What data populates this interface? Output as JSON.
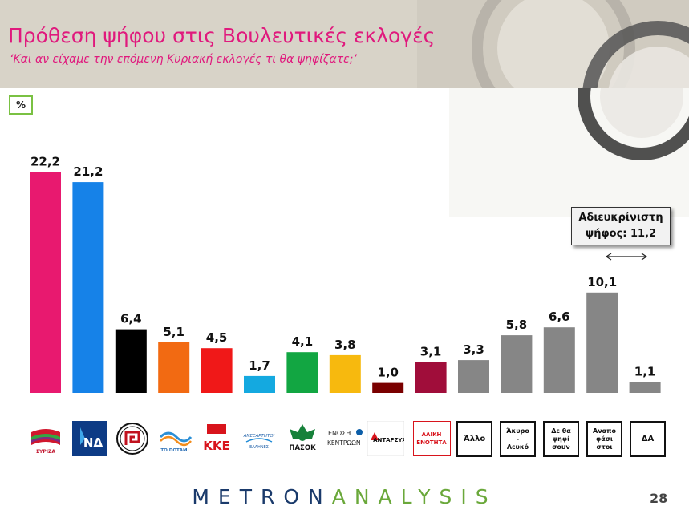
{
  "header": {
    "title": "Πρόθεση ψήφου στις Βουλευτικές εκλογές",
    "subtitle": "‘Και αν είχαμε την επόμενη Κυριακή εκλογές τι θα ψηφίζατε;’"
  },
  "unit_label": "%",
  "callout": {
    "line1": "Αδιευκρίνιστη",
    "line2": "ψήφος: 11,2"
  },
  "chart_data": {
    "type": "bar",
    "title": "Πρόθεση ψήφου στις Βουλευτικές εκλογές",
    "subtitle": "‘Και αν είχαμε την επόμενη Κυριακή εκλογές τι θα ψηφίζατε;’",
    "ylabel": "%",
    "ylim": [
      0,
      25
    ],
    "grid": false,
    "legend": "none",
    "categories": [
      "ΣΥΡΙΖΑ",
      "ΝΔ",
      "Χρυσή Αυγή",
      "ΤΟ ΠΟΤΑΜΙ",
      "ΚΚΕ",
      "ΑΝΕΞΑΡΤΗΤΟΙ ΕΛΛΗΝΕΣ",
      "ΠΑΣΟΚ",
      "ΕΝΩΣΗ ΚΕΝΤΡΩΩΝ",
      "ΑΝΤΑΡΣΥΑ",
      "ΛΑΙΚΗ ΕΝΟΤΗΤΑ",
      "Άλλο",
      "Άκυρο - Λευκό",
      "Δε θα ψηφίσουν",
      "Αναποφάσιστοι",
      "ΔΑ"
    ],
    "values": [
      22.2,
      21.2,
      6.4,
      5.1,
      4.5,
      1.7,
      4.1,
      3.8,
      1.0,
      3.1,
      3.3,
      5.8,
      6.6,
      10.1,
      1.1
    ],
    "value_labels": [
      "22,2",
      "21,2",
      "6,4",
      "5,1",
      "4,5",
      "1,7",
      "4,1",
      "3,8",
      "1,0",
      "3,1",
      "3,3",
      "5,8",
      "6,6",
      "10,1",
      "1,1"
    ],
    "colors": [
      "#e8196f",
      "#1682e8",
      "#000000",
      "#f26a12",
      "#f01818",
      "#14a9e0",
      "#12a642",
      "#f7b90e",
      "#7a0000",
      "#a00d3a",
      "#868686",
      "#868686",
      "#868686",
      "#868686",
      "#868686"
    ]
  },
  "logos": {
    "syriza": "ΣΥΡΙΖΑ",
    "nd": "ΝΔ",
    "potami": "ΤΟ ΠΟΤΑΜΙ",
    "kke": "ΚΚΕ",
    "anel_top": "ΑΝΕΞΑΡΤΗΤΟΙ",
    "anel_bottom": "ΕΛΛΗΝΕΣ",
    "pasok": "ΠΑΣΟΚ",
    "enosi_1": "ΕΝΩΣΗ",
    "enosi_2": "ΚΕΝΤΡΩΩΝ",
    "antarsya": "ΑΝΤΑΡΣΥΑ",
    "laiki_1": "ΛΑΙΚΗ",
    "laiki_2": "ΕΝΟΤΗΤΑ",
    "allo": "Άλλο",
    "akyro_1": "Άκυρο",
    "akyro_2": "-",
    "akyro_3": "Λευκό",
    "de_1": "Δε θα",
    "de_2": "ψηφί",
    "de_3": "σουν",
    "anap_1": "Αναπο",
    "anap_2": "φάσι",
    "anap_3": "στοι",
    "da": "ΔΑ"
  },
  "footer": {
    "brand_a": "METRON",
    "brand_b": "ANALYSIS",
    "page_number": "28"
  }
}
